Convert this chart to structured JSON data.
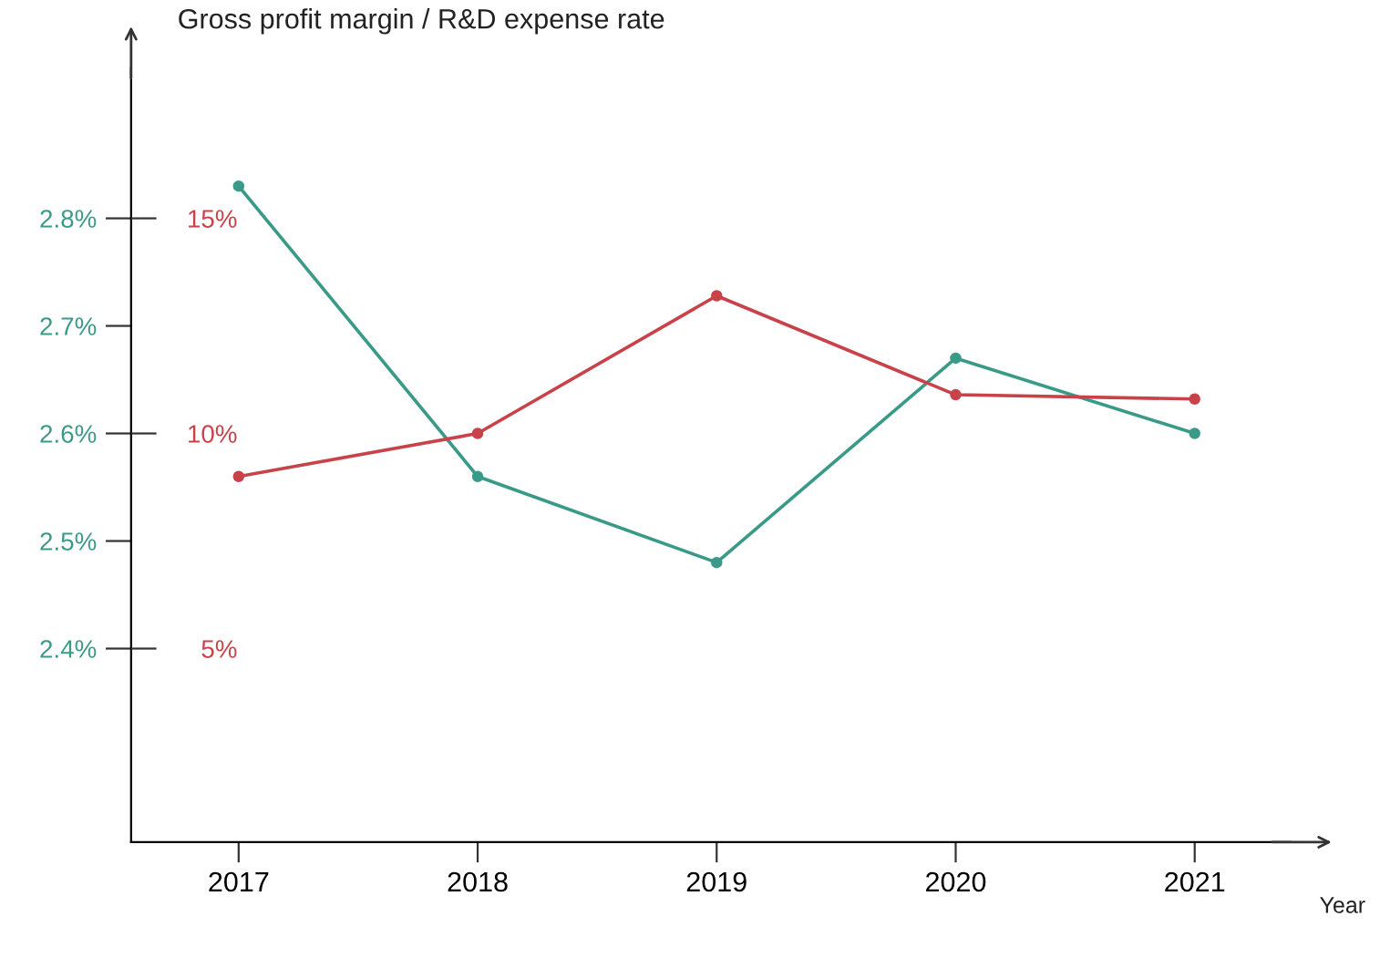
{
  "chart_data": {
    "type": "line",
    "title": "Gross profit margin / R&D expense rate",
    "xlabel": "Year",
    "categories": [
      "2017",
      "2018",
      "2019",
      "2020",
      "2021"
    ],
    "series": [
      {
        "color": "#3a9a88",
        "values": [
          2.83,
          2.56,
          2.48,
          2.67,
          2.6
        ]
      },
      {
        "color": "#c8424a",
        "axis": "y2",
        "values": [
          9.0,
          10.0,
          13.2,
          10.9,
          10.8
        ]
      }
    ],
    "ylim": [
      2.22,
      2.94
    ],
    "yticks": [
      {
        "value": 2.4,
        "label": "2.4%"
      },
      {
        "value": 2.5,
        "label": "2.5%"
      },
      {
        "value": 2.6,
        "label": "2.6%"
      },
      {
        "value": 2.7,
        "label": "2.7%"
      },
      {
        "value": 2.8,
        "label": "2.8%"
      }
    ],
    "y2lim": [
      0.5,
      18.5
    ],
    "y2ticks": [
      {
        "value": 5,
        "label": "5%"
      },
      {
        "value": 10,
        "label": "10%"
      },
      {
        "value": 15,
        "label": "15%"
      }
    ],
    "marker": "circle",
    "line_style": "solid"
  }
}
